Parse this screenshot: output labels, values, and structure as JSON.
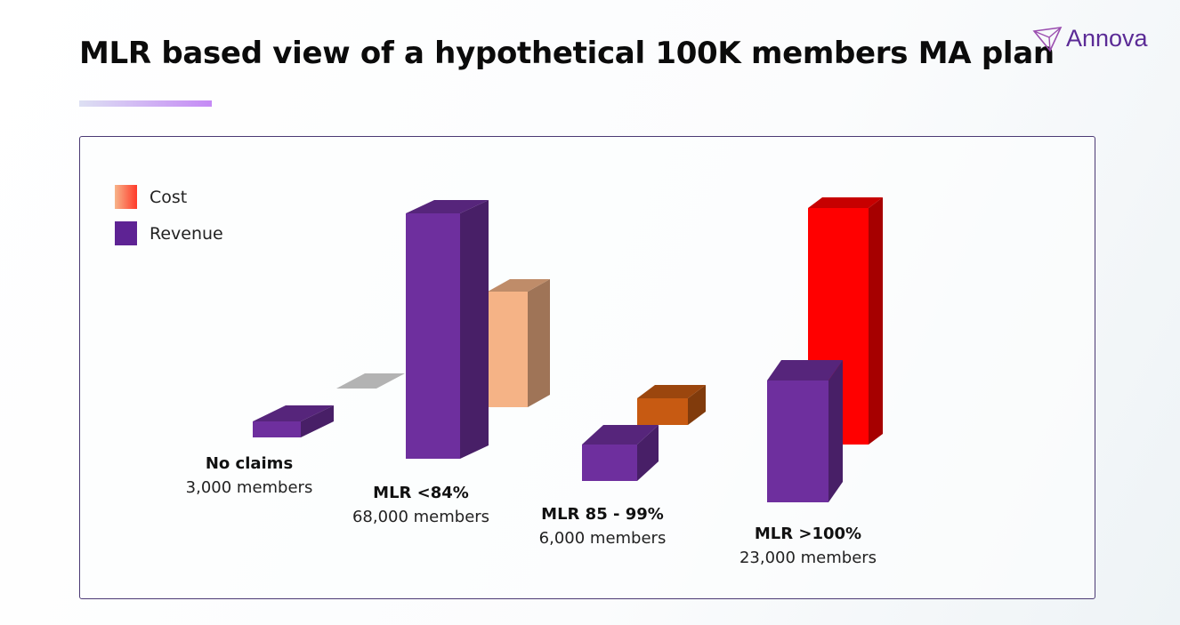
{
  "title": "MLR based view of a hypothetical 100K members MA plan",
  "logo": "Annova",
  "colors": {
    "accent": "#5b2b96",
    "revenue": "#6e2f9e",
    "cost_low": "#f5b386",
    "cost_mid": "#c75a12",
    "cost_high": "#ff0000",
    "cost_zero": "#b3b3b3"
  },
  "chart_data": {
    "type": "bar",
    "title": "MLR based view of a hypothetical 100K members MA plan",
    "categories": [
      "No claims",
      "MLR <84%",
      "MLR 85 - 99%",
      "MLR >100%"
    ],
    "category_members": [
      "3,000 members",
      "68,000 members",
      "6,000 members",
      "23,000 members"
    ],
    "legend": [
      "Cost",
      "Revenue"
    ],
    "legend_position": "top-left",
    "series": [
      {
        "name": "Revenue",
        "values": [
          1.8,
          27.6,
          4.1,
          13.7
        ]
      },
      {
        "name": "Cost",
        "values": [
          0,
          13,
          3,
          26.6
        ]
      }
    ],
    "units": "relative (no axis shown)",
    "grid": false
  }
}
